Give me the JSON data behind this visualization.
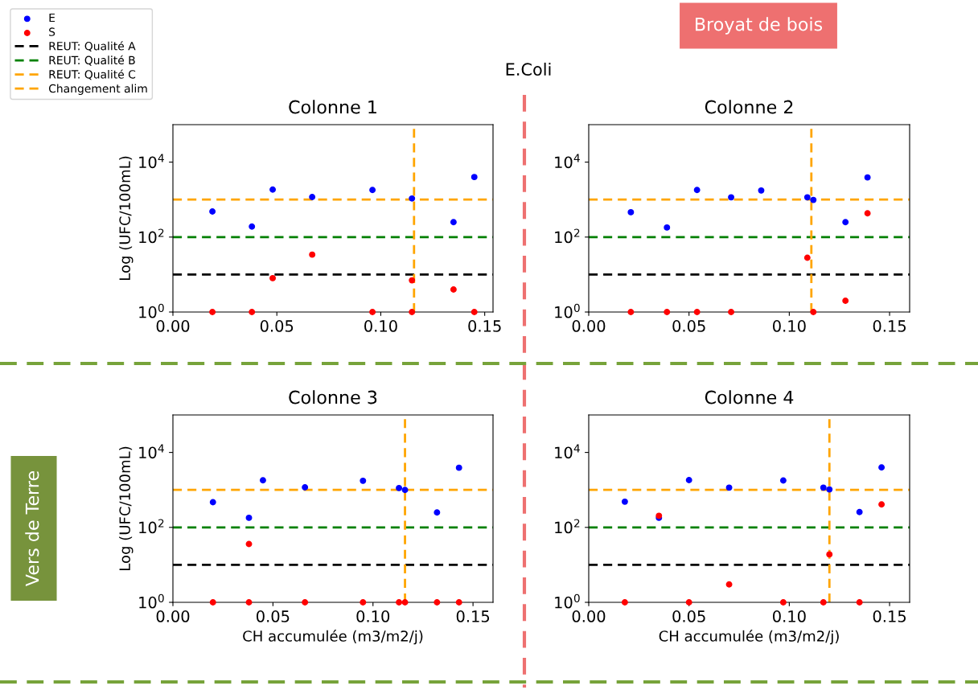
{
  "chart_data": [
    {
      "type": "scatter",
      "title": "Colonne 1",
      "ylabel": "Log (UFC/100mL)",
      "annotations": [
        "E.Coli",
        "Broyat de bois",
        "Vers de Terre"
      ],
      "series": [
        {
          "name": "E",
          "color": "#0000ff",
          "x": [
            0.019,
            0.038,
            0.048,
            0.067,
            0.096,
            0.115,
            0.135,
            0.145
          ],
          "values": [
            480,
            190,
            1850,
            1170,
            1800,
            1070,
            250,
            4000
          ]
        },
        {
          "name": "S",
          "color": "#ff0000",
          "x": [
            0.019,
            0.038,
            0.048,
            0.067,
            0.096,
            0.115,
            0.115,
            0.135,
            0.145
          ],
          "values": [
            1,
            1,
            8,
            34,
            1,
            7,
            1,
            4,
            1
          ]
        }
      ],
      "ref_lines": [
        {
          "axis": "y",
          "value": 10,
          "label": "REUT: Qualité A",
          "color": "#000000",
          "line_style": "dashed"
        },
        {
          "axis": "y",
          "value": 100,
          "label": "REUT: Qualité B",
          "color": "#008000",
          "line_style": "dashed"
        },
        {
          "axis": "y",
          "value": 1000,
          "label": "REUT: Qualité C",
          "color": "#ffa500",
          "line_style": "dashed"
        },
        {
          "axis": "x",
          "value": 0.116,
          "label": "Changement alim",
          "color": "#ffa500",
          "line_style": "dashed"
        }
      ],
      "log": "y",
      "xlim": [
        0,
        0.154
      ],
      "ylim": [
        1,
        100000
      ],
      "xticks": [
        {
          "value": 0,
          "label": "0.00"
        },
        {
          "value": 0.05,
          "label": "0.05"
        },
        {
          "value": 0.1,
          "label": "0.10"
        },
        {
          "value": 0.15,
          "label": "0.15"
        }
      ],
      "yticks": [
        {
          "value": 1,
          "label": "10$^{0}$"
        },
        {
          "value": 100,
          "label": "10$^{2}$"
        },
        {
          "value": 10000,
          "label": "10$^{4}$"
        }
      ],
      "marker": "circle",
      "grid": false,
      "legend": "top left"
    },
    {
      "type": "scatter",
      "title": "Colonne 2",
      "series": [
        {
          "color": "#0000ff",
          "x": [
            0.021,
            0.039,
            0.054,
            0.071,
            0.086,
            0.109,
            0.112,
            0.128,
            0.139
          ],
          "values": [
            460,
            180,
            1800,
            1150,
            1750,
            1150,
            980,
            250,
            3900
          ]
        },
        {
          "color": "#ff0000",
          "x": [
            0.021,
            0.039,
            0.054,
            0.071,
            0.109,
            0.112,
            0.128,
            0.139
          ],
          "values": [
            1,
            1,
            1,
            1,
            28,
            1,
            2,
            430
          ]
        }
      ],
      "ref_lines": [
        {
          "axis": "y",
          "value": 10,
          "color": "#000000",
          "line_style": "dashed"
        },
        {
          "axis": "y",
          "value": 100,
          "color": "#008000",
          "line_style": "dashed"
        },
        {
          "axis": "y",
          "value": 1000,
          "color": "#ffa500",
          "line_style": "dashed"
        },
        {
          "axis": "x",
          "value": 0.111,
          "color": "#ffa500",
          "line_style": "dashed"
        }
      ],
      "log": "y",
      "xlim": [
        0,
        0.16
      ],
      "ylim": [
        1,
        100000
      ],
      "xticks": [
        {
          "value": 0,
          "label": "0.00"
        },
        {
          "value": 0.05,
          "label": "0.05"
        },
        {
          "value": 0.1,
          "label": "0.10"
        },
        {
          "value": 0.15,
          "label": "0.15"
        }
      ],
      "yticks": [
        {
          "value": 1,
          "label": "10$^{0}$"
        },
        {
          "value": 100,
          "label": "10$^{2}$"
        },
        {
          "value": 10000,
          "label": "10$^{4}$"
        }
      ],
      "marker": "circle",
      "grid": false
    },
    {
      "type": "scatter",
      "title": "Colonne 3",
      "ylabel": "Log (UFC/100mL)",
      "xlabel": "CH accumulée (m3/m2/j)",
      "series": [
        {
          "color": "#0000ff",
          "x": [
            0.02,
            0.038,
            0.045,
            0.066,
            0.095,
            0.113,
            0.116,
            0.132,
            0.143
          ],
          "values": [
            470,
            180,
            1800,
            1170,
            1750,
            1120,
            1000,
            250,
            3900
          ]
        },
        {
          "color": "#ff0000",
          "x": [
            0.02,
            0.038,
            0.038,
            0.066,
            0.095,
            0.113,
            0.116,
            0.132,
            0.143
          ],
          "values": [
            1,
            1,
            36,
            1,
            1,
            1,
            1,
            1,
            1
          ]
        }
      ],
      "ref_lines": [
        {
          "axis": "y",
          "value": 10,
          "color": "#000000",
          "line_style": "dashed"
        },
        {
          "axis": "y",
          "value": 100,
          "color": "#008000",
          "line_style": "dashed"
        },
        {
          "axis": "y",
          "value": 1000,
          "color": "#ffa500",
          "line_style": "dashed"
        },
        {
          "axis": "x",
          "value": 0.116,
          "color": "#ffa500",
          "line_style": "dashed"
        }
      ],
      "log": "y",
      "xlim": [
        0,
        0.16
      ],
      "ylim": [
        1,
        100000
      ],
      "xticks": [
        {
          "value": 0,
          "label": "0.00"
        },
        {
          "value": 0.05,
          "label": "0.05"
        },
        {
          "value": 0.1,
          "label": "0.10"
        },
        {
          "value": 0.15,
          "label": "0.15"
        }
      ],
      "yticks": [
        {
          "value": 1,
          "label": "10$^{0}$"
        },
        {
          "value": 100,
          "label": "10$^{2}$"
        },
        {
          "value": 10000,
          "label": "10$^{4}$"
        }
      ],
      "marker": "circle",
      "grid": false
    },
    {
      "type": "scatter",
      "title": "Colonne 4",
      "xlabel": "CH accumulée (m3/m2/j)",
      "series": [
        {
          "color": "#0000ff",
          "x": [
            0.018,
            0.035,
            0.05,
            0.07,
            0.097,
            0.117,
            0.12,
            0.135,
            0.146
          ],
          "values": [
            485,
            180,
            1830,
            1150,
            1780,
            1150,
            1030,
            257,
            3980
          ]
        },
        {
          "color": "#ff0000",
          "x": [
            0.018,
            0.035,
            0.05,
            0.07,
            0.097,
            0.117,
            0.12,
            0.135,
            0.146
          ],
          "values": [
            1,
            204,
            1,
            3,
            1,
            1,
            19,
            1,
            410
          ]
        }
      ],
      "ref_lines": [
        {
          "axis": "y",
          "value": 10,
          "color": "#000000",
          "line_style": "dashed"
        },
        {
          "axis": "y",
          "value": 100,
          "color": "#008000",
          "line_style": "dashed"
        },
        {
          "axis": "y",
          "value": 1000,
          "color": "#ffa500",
          "line_style": "dashed"
        },
        {
          "axis": "x",
          "value": 0.12,
          "color": "#ffa500",
          "line_style": "dashed"
        }
      ],
      "log": "y",
      "xlim": [
        0,
        0.16
      ],
      "ylim": [
        1,
        100000
      ],
      "xticks": [
        {
          "value": 0,
          "label": "0.00"
        },
        {
          "value": 0.05,
          "label": "0.05"
        },
        {
          "value": 0.1,
          "label": "0.10"
        },
        {
          "value": 0.15,
          "label": "0.15"
        }
      ],
      "yticks": [
        {
          "value": 1,
          "label": "10$^{0}$"
        },
        {
          "value": 100,
          "label": "10$^{2}$"
        },
        {
          "value": 10000,
          "label": "10$^{4}$"
        }
      ],
      "marker": "circle",
      "grid": false
    }
  ]
}
